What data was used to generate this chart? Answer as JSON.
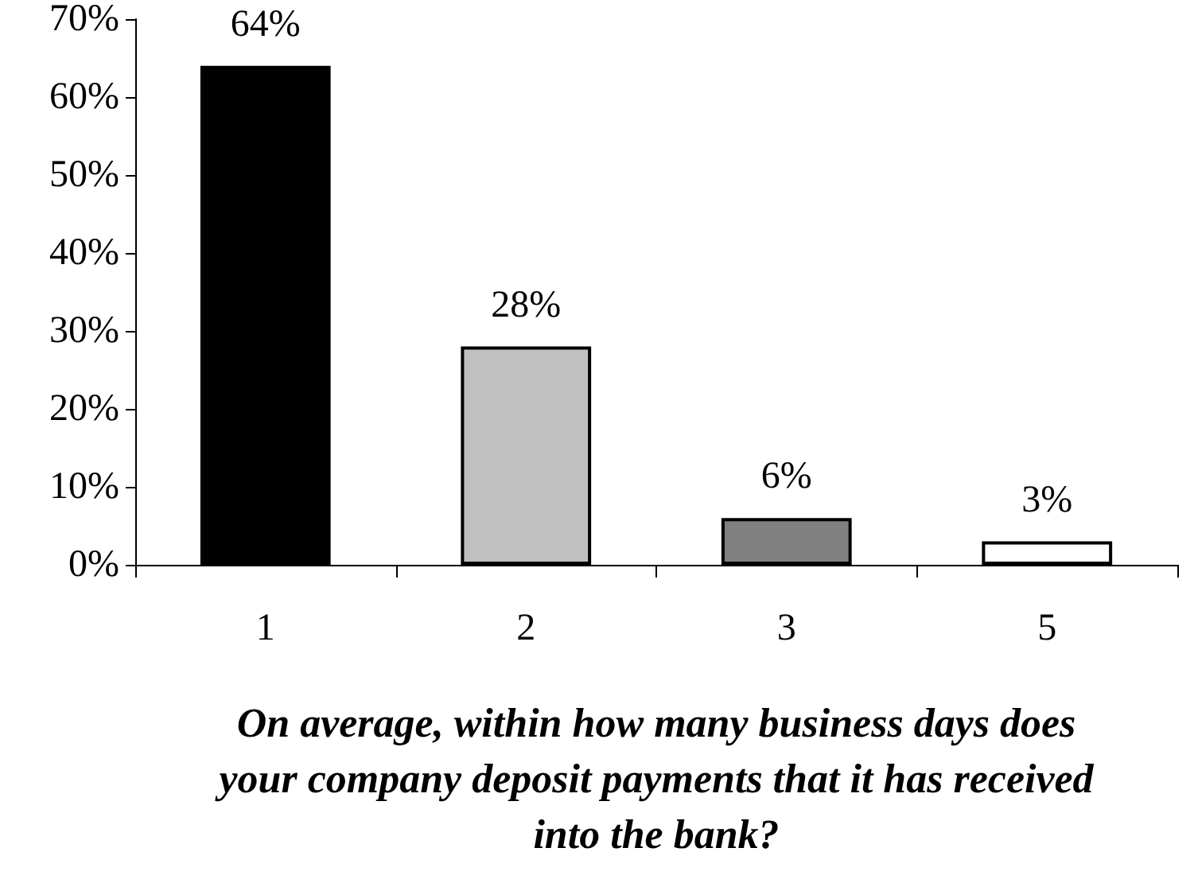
{
  "chart_data": {
    "type": "bar",
    "xlabel": "On average, within how many business days does your company deposit payments that it has received into the bank?",
    "categories": [
      "1",
      "2",
      "3",
      "5"
    ],
    "values": [
      64,
      28,
      6,
      3
    ],
    "colors": [
      "#000000",
      "#c0c0c0",
      "#808080",
      "#ffffff"
    ],
    "value_labels": [
      "64%",
      "28%",
      "6%",
      "3%"
    ],
    "ylim": [
      0,
      70
    ],
    "yticks": [
      {
        "value": 0,
        "label": "0%"
      },
      {
        "value": 10,
        "label": "10%"
      },
      {
        "value": 20,
        "label": "20%"
      },
      {
        "value": 30,
        "label": "30%"
      },
      {
        "value": 40,
        "label": "40%"
      },
      {
        "value": 50,
        "label": "50%"
      },
      {
        "value": 60,
        "label": "60%"
      },
      {
        "value": 70,
        "label": "70%"
      }
    ],
    "grid": false
  }
}
